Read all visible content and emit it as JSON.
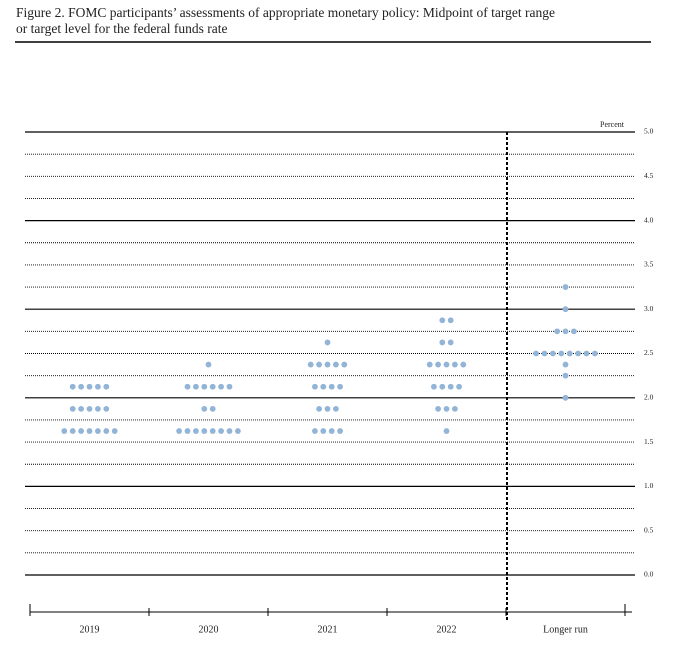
{
  "chart_data": {
    "type": "dot",
    "title": "Figure 2. FOMC participants’ assessments of appropriate monetary policy: Midpoint of target range",
    "subtitle": "or target level for the federal funds rate",
    "ylabel": "Percent",
    "categories": [
      "2019",
      "2020",
      "2021",
      "2022",
      "Longer run"
    ],
    "color": "#92b4d6",
    "values": [
      [
        2.125,
        2.125,
        2.125,
        2.125,
        2.125,
        1.875,
        1.875,
        1.875,
        1.875,
        1.875,
        1.625,
        1.625,
        1.625,
        1.625,
        1.625,
        1.625,
        1.625
      ],
      [
        2.375,
        2.125,
        2.125,
        2.125,
        2.125,
        2.125,
        2.125,
        1.875,
        1.875,
        1.625,
        1.625,
        1.625,
        1.625,
        1.625,
        1.625,
        1.625,
        1.625
      ],
      [
        2.625,
        2.375,
        2.375,
        2.375,
        2.375,
        2.375,
        2.125,
        2.125,
        2.125,
        2.125,
        1.875,
        1.875,
        1.875,
        1.625,
        1.625,
        1.625,
        1.625
      ],
      [
        2.875,
        2.875,
        2.625,
        2.625,
        2.375,
        2.375,
        2.375,
        2.375,
        2.375,
        2.125,
        2.125,
        2.125,
        2.125,
        1.875,
        1.875,
        1.875,
        1.625
      ],
      [
        3.25,
        3.0,
        2.75,
        2.75,
        2.75,
        2.5,
        2.5,
        2.5,
        2.5,
        2.5,
        2.5,
        2.5,
        2.5,
        2.375,
        2.25,
        2.0
      ]
    ],
    "ylim": [
      0,
      5
    ],
    "yticks": [
      {
        "value": 0,
        "label": "0.0"
      },
      {
        "value": 0.5,
        "label": "0.5"
      },
      {
        "value": 1,
        "label": "1.0"
      },
      {
        "value": 1.5,
        "label": "1.5"
      },
      {
        "value": 2,
        "label": "2.0"
      },
      {
        "value": 2.5,
        "label": "2.5"
      },
      {
        "value": 3,
        "label": "3.0"
      },
      {
        "value": 3.5,
        "label": "3.5"
      },
      {
        "value": 4,
        "label": "4.0"
      },
      {
        "value": 4.5,
        "label": "4.5"
      },
      {
        "value": 5,
        "label": "5.0"
      }
    ],
    "grid": true
  }
}
